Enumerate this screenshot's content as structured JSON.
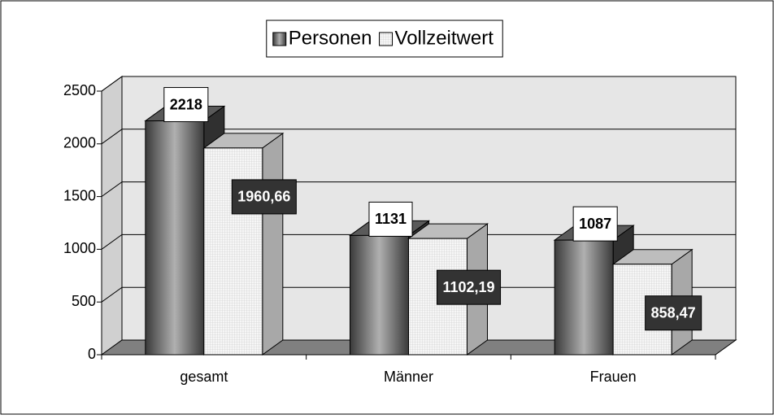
{
  "chart_data": {
    "type": "bar3d",
    "categories": [
      "gesamt",
      "Männer",
      "Frauen"
    ],
    "series": [
      {
        "name": "Personen",
        "color": "#808080",
        "values": [
          2218,
          1131,
          1087
        ]
      },
      {
        "name": "Vollzeitwert",
        "color": "#f4f4f4",
        "values": [
          1960.66,
          1102.19,
          858.47
        ],
        "value_labels": [
          "1960,66",
          "1102,19",
          "858,47"
        ]
      }
    ],
    "ylim": [
      0,
      2500
    ],
    "yticks": [
      0,
      500,
      1000,
      1500,
      2000,
      2500
    ],
    "grid": true,
    "legend": "top"
  }
}
